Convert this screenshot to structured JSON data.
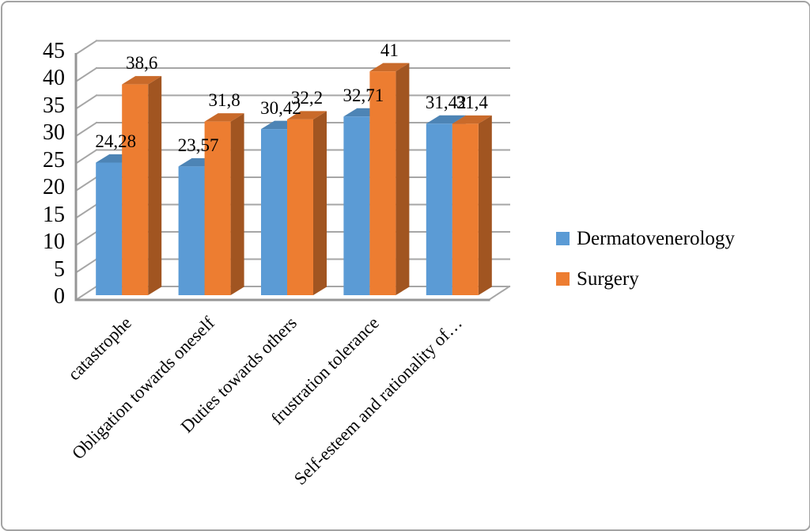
{
  "page": {
    "background": "#ffffff",
    "frame_border_color": "#a3a3a3"
  },
  "chart_data": {
    "type": "bar",
    "variant": "3d-clustered-column",
    "title": "",
    "xlabel": "",
    "ylabel": "",
    "categories": [
      "catastrophe",
      "Obligation towards oneself",
      "Duties towards others",
      "frustration tolerance",
      "Self-esteem and rationality of…"
    ],
    "series": [
      {
        "name": "Dermatovenerology",
        "color": "#5B9BD5",
        "values": [
          24.28,
          23.57,
          30.42,
          32.71,
          31.42
        ],
        "labels": [
          "24,28",
          "23,57",
          "30,42",
          "32,71",
          "31,42"
        ]
      },
      {
        "name": "Surgery",
        "color": "#ED7D31",
        "values": [
          38.6,
          31.8,
          32.2,
          41,
          31.4
        ],
        "labels": [
          "38,6",
          "31,8",
          "32,2",
          "41",
          "31,4"
        ]
      }
    ],
    "ylim": [
      0,
      45
    ],
    "ytick_step": 5,
    "ytick_labels": [
      "0",
      "5",
      "10",
      "15",
      "20",
      "25",
      "30",
      "35",
      "40",
      "45"
    ],
    "grid": true,
    "gridline_color": "#A6A6A6",
    "axis_line_color": "#969696",
    "legend_position": "right",
    "decimal_separator": ","
  }
}
